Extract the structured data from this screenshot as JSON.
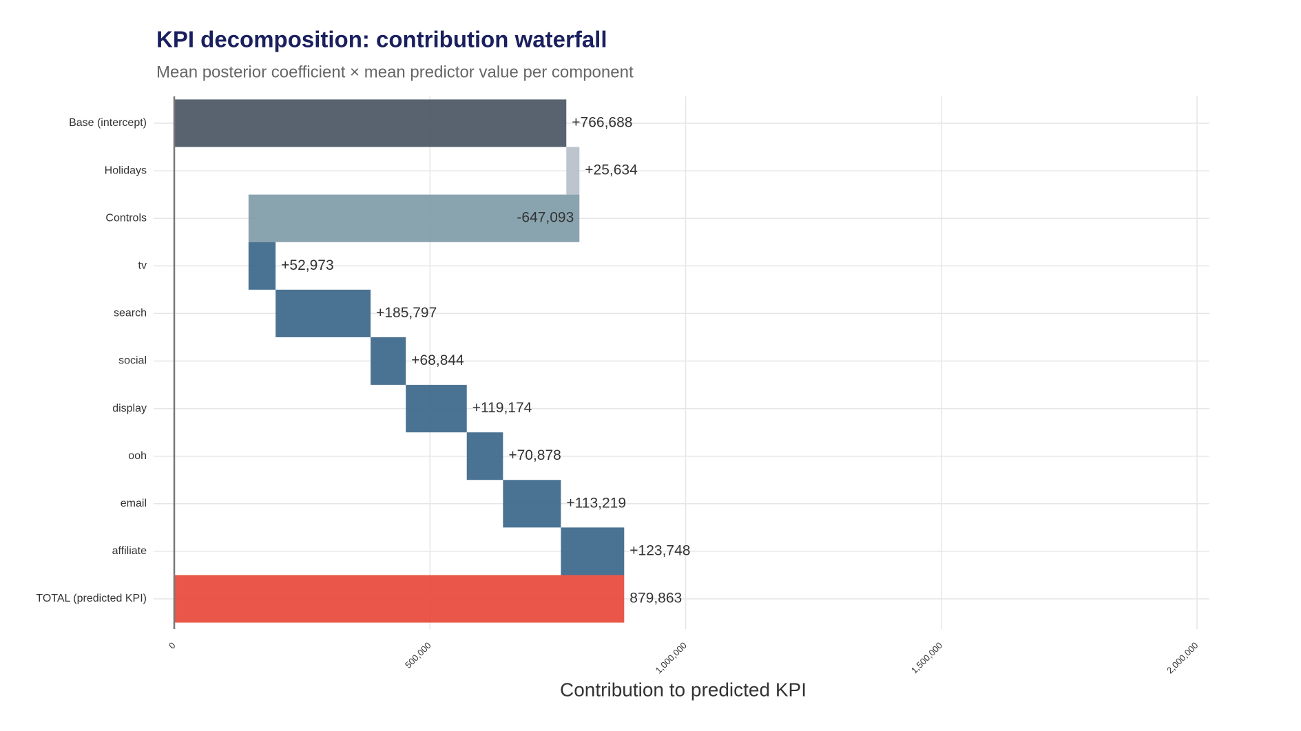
{
  "chart_data": {
    "type": "waterfall",
    "title": "KPI decomposition: contribution waterfall",
    "subtitle": "Mean posterior coefficient × mean predictor value per component",
    "x_label": "Contribution to predicted KPI",
    "categories": [
      "Base (intercept)",
      "Holidays",
      "Controls",
      "tv",
      "search",
      "social",
      "display",
      "ooh",
      "email",
      "affiliate",
      "TOTAL (predicted KPI)"
    ],
    "values": [
      766688,
      25634,
      -647093,
      52973,
      185797,
      68844,
      119174,
      70878,
      113219,
      123748,
      879863
    ],
    "value_labels": [
      "+766,688",
      "+25,634",
      "-647,093",
      "+52,973",
      "+185,797",
      "+68,844",
      "+119,174",
      "+70,878",
      "+113,219",
      "+123,748",
      "879,863"
    ],
    "colors": [
      "#4b5664",
      "#b6bfca",
      "#7f9ca8",
      "#3b6689",
      "#3b6689",
      "#3b6689",
      "#3b6689",
      "#3b6689",
      "#3b6689",
      "#3b6689",
      "#e8493b"
    ],
    "last_is_total": true,
    "xlim": [
      0,
      2000000
    ],
    "xticks": [
      0,
      {
        "value": 500000,
        "label": "500,000"
      },
      {
        "value": 1000000,
        "label": "1,000,000"
      },
      {
        "value": 1500000,
        "label": "1,500,000"
      },
      {
        "value": 2000000,
        "label": "2,000,000"
      }
    ],
    "grid": true
  }
}
